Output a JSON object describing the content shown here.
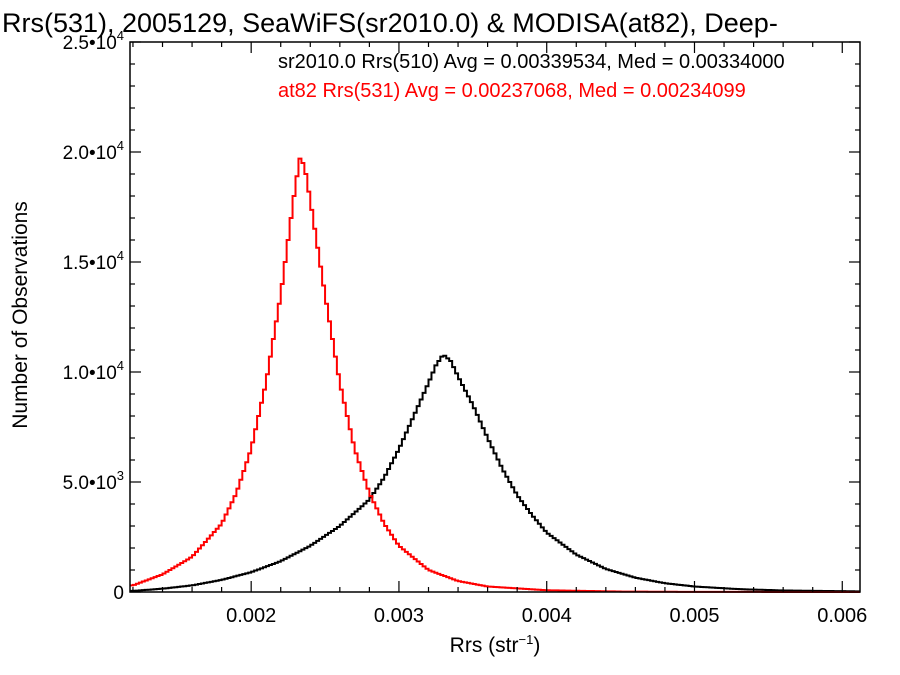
{
  "chart_data": {
    "type": "histogram-step",
    "title": "Rrs(531), 2005129, SeaWiFS(sr2010.0) & MODISA(at82), Deep-",
    "xlabel": "Rrs (str",
    "xlabel_sup": "−1",
    "xlabel_end": ")",
    "ylabel": "Number of Observations",
    "xlim": [
      0.00118,
      0.00612
    ],
    "ylim": [
      0,
      25000
    ],
    "x_ticks": [
      {
        "value": 0.002,
        "label": "0.002"
      },
      {
        "value": 0.003,
        "label": "0.003"
      },
      {
        "value": 0.004,
        "label": "0.004"
      },
      {
        "value": 0.005,
        "label": "0.005"
      },
      {
        "value": 0.006,
        "label": "0.006"
      }
    ],
    "y_ticks": [
      {
        "value": 0,
        "label": "0",
        "exp": ""
      },
      {
        "value": 5000,
        "label": "5.0•10",
        "exp": "3"
      },
      {
        "value": 10000,
        "label": "1.0•10",
        "exp": "4"
      },
      {
        "value": 15000,
        "label": "1.5•10",
        "exp": "4"
      },
      {
        "value": 20000,
        "label": "2.0•10",
        "exp": "4"
      },
      {
        "value": 25000,
        "label": "2.5•10",
        "exp": "4"
      }
    ],
    "annotations": [
      {
        "text": "sr2010.0 Rrs(510) Avg = 0.00339534, Med = 0.00334000",
        "color": "#000000"
      },
      {
        "text": "at82 Rrs(531) Avg = 0.00237068, Med = 0.00234099",
        "color": "#ff0000"
      }
    ],
    "series": [
      {
        "color": "#000000",
        "points": [
          [
            0.0012,
            50
          ],
          [
            0.0014,
            150
          ],
          [
            0.0016,
            300
          ],
          [
            0.0018,
            550
          ],
          [
            0.002,
            900
          ],
          [
            0.0022,
            1400
          ],
          [
            0.0024,
            2100
          ],
          [
            0.0026,
            3000
          ],
          [
            0.0028,
            4200
          ],
          [
            0.0029,
            5200
          ],
          [
            0.003,
            6500
          ],
          [
            0.0031,
            8000
          ],
          [
            0.0032,
            9500
          ],
          [
            0.00325,
            10300
          ],
          [
            0.0033,
            10800
          ],
          [
            0.00335,
            10500
          ],
          [
            0.0034,
            9800
          ],
          [
            0.0035,
            8500
          ],
          [
            0.0036,
            7000
          ],
          [
            0.0037,
            5600
          ],
          [
            0.0038,
            4400
          ],
          [
            0.0039,
            3500
          ],
          [
            0.004,
            2700
          ],
          [
            0.0042,
            1700
          ],
          [
            0.0044,
            1050
          ],
          [
            0.0046,
            650
          ],
          [
            0.0048,
            400
          ],
          [
            0.005,
            250
          ],
          [
            0.0053,
            130
          ],
          [
            0.0056,
            70
          ],
          [
            0.0061,
            30
          ]
        ]
      },
      {
        "color": "#ff0000",
        "points": [
          [
            0.0012,
            300
          ],
          [
            0.0014,
            800
          ],
          [
            0.0016,
            1600
          ],
          [
            0.0018,
            3100
          ],
          [
            0.0019,
            4500
          ],
          [
            0.002,
            6500
          ],
          [
            0.0021,
            9500
          ],
          [
            0.0022,
            13500
          ],
          [
            0.00225,
            16000
          ],
          [
            0.0023,
            18500
          ],
          [
            0.00233,
            19700
          ],
          [
            0.00236,
            19400
          ],
          [
            0.0024,
            17800
          ],
          [
            0.0025,
            13500
          ],
          [
            0.0026,
            9500
          ],
          [
            0.0027,
            6500
          ],
          [
            0.0028,
            4500
          ],
          [
            0.0029,
            3100
          ],
          [
            0.003,
            2100
          ],
          [
            0.0032,
            1000
          ],
          [
            0.0034,
            500
          ],
          [
            0.0036,
            250
          ],
          [
            0.004,
            80
          ],
          [
            0.0045,
            20
          ],
          [
            0.005,
            5
          ],
          [
            0.0061,
            0
          ]
        ]
      }
    ]
  }
}
